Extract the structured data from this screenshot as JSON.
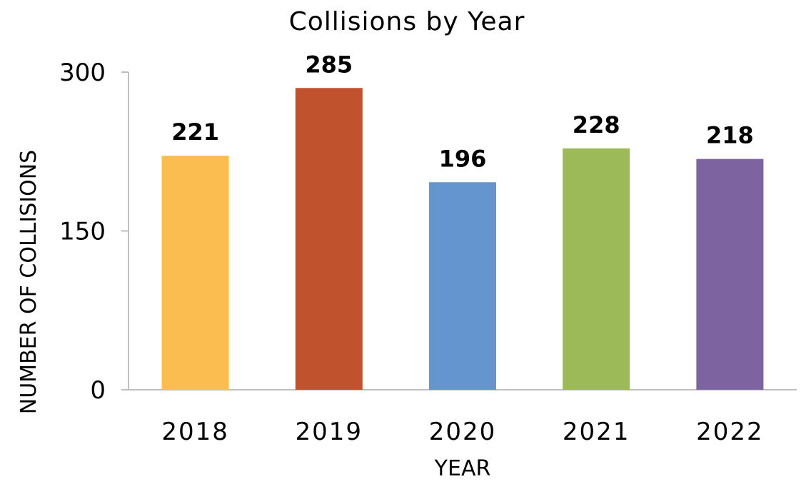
{
  "chart_data": {
    "type": "bar",
    "title": "Collisions by Year",
    "xlabel": "YEAR",
    "ylabel": "NUMBER OF COLLISIONS",
    "categories": [
      "2018",
      "2019",
      "2020",
      "2021",
      "2022"
    ],
    "values": [
      221,
      285,
      196,
      228,
      218
    ],
    "colors": [
      "#FBBD50",
      "#C0522D",
      "#6595CE",
      "#9CBB58",
      "#7E63A1"
    ],
    "ylim": [
      0,
      300
    ],
    "yticks": [
      0,
      150,
      300
    ],
    "data_labels": [
      "221",
      "285",
      "196",
      "228",
      "218"
    ],
    "grid": false,
    "legend": "none"
  }
}
